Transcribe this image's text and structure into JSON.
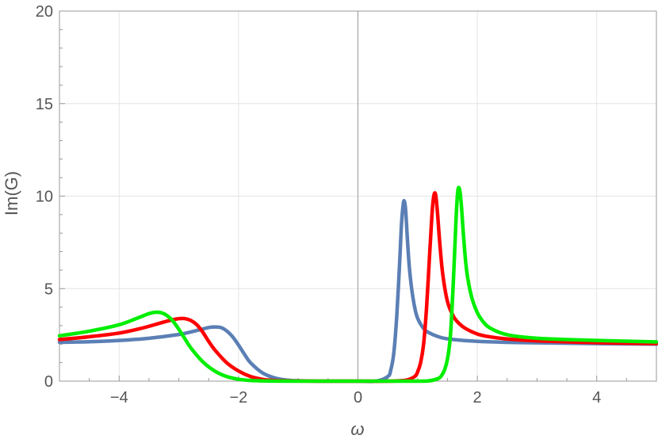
{
  "chart_data": {
    "type": "line",
    "title": "",
    "xlabel": "ω",
    "ylabel": "Im(G)",
    "xlim": [
      -5,
      5
    ],
    "ylim": [
      0,
      20
    ],
    "xticks": [
      -4,
      -2,
      0,
      2,
      4
    ],
    "xtick_labels": [
      "−4",
      "−2",
      "0",
      "2",
      "4"
    ],
    "yticks": [
      0,
      5,
      10,
      15,
      20
    ],
    "ytick_labels": [
      "0",
      "5",
      "10",
      "15",
      "20"
    ],
    "grid": true,
    "legend": "none",
    "series": [
      {
        "color": "#5b7fb5",
        "x": [
          -5,
          -4.5,
          -4,
          -3.5,
          -3,
          -2.8,
          -2.6,
          -2.5,
          -2.4,
          -2.3,
          -2.2,
          -2.1,
          -2,
          -1.9,
          -1.8,
          -1.6,
          -1.4,
          -1.2,
          -1,
          -0.5,
          0,
          0.3,
          0.5,
          0.55,
          0.6,
          0.65,
          0.7,
          0.73,
          0.76,
          0.78,
          0.8,
          0.83,
          0.86,
          0.9,
          0.95,
          1,
          1.1,
          1.2,
          1.4,
          1.6,
          2,
          2.5,
          3,
          4,
          5
        ],
        "y": [
          2.1,
          2.13,
          2.2,
          2.32,
          2.52,
          2.66,
          2.82,
          2.9,
          2.93,
          2.9,
          2.72,
          2.4,
          1.95,
          1.45,
          1.0,
          0.45,
          0.18,
          0.06,
          0.02,
          0.0,
          0.0,
          0.0,
          0.25,
          0.6,
          1.5,
          3.5,
          6.5,
          8.5,
          9.6,
          9.7,
          9.2,
          7.6,
          6.2,
          5.0,
          4.0,
          3.4,
          2.85,
          2.6,
          2.35,
          2.25,
          2.15,
          2.1,
          2.07,
          2.03,
          2.0
        ]
      },
      {
        "color": "#ff0000",
        "x": [
          -5,
          -4.5,
          -4,
          -3.6,
          -3.3,
          -3.1,
          -3.0,
          -2.9,
          -2.8,
          -2.7,
          -2.6,
          -2.5,
          -2.4,
          -2.2,
          -2,
          -1.8,
          -1.6,
          -1.4,
          -1,
          -0.5,
          0,
          0.5,
          0.8,
          0.95,
          1.0,
          1.05,
          1.1,
          1.15,
          1.2,
          1.24,
          1.27,
          1.3,
          1.33,
          1.37,
          1.42,
          1.5,
          1.6,
          1.7,
          1.8,
          2,
          2.2,
          2.5,
          3,
          4,
          5
        ],
        "y": [
          2.25,
          2.4,
          2.6,
          2.88,
          3.15,
          3.32,
          3.38,
          3.38,
          3.28,
          3.05,
          2.65,
          2.15,
          1.7,
          1.0,
          0.55,
          0.25,
          0.1,
          0.04,
          0.01,
          0.0,
          0.0,
          0.0,
          0.05,
          0.25,
          0.5,
          1.0,
          2.0,
          4.0,
          6.8,
          9.0,
          10.0,
          10.1,
          9.2,
          7.5,
          5.8,
          4.3,
          3.5,
          3.1,
          2.85,
          2.55,
          2.4,
          2.28,
          2.18,
          2.08,
          2.03
        ]
      },
      {
        "color": "#00ee00",
        "x": [
          -5,
          -4.5,
          -4,
          -3.7,
          -3.5,
          -3.4,
          -3.3,
          -3.2,
          -3.1,
          -3.0,
          -2.9,
          -2.8,
          -2.6,
          -2.4,
          -2.2,
          -2,
          -1.8,
          -1.5,
          -1,
          0,
          0.5,
          1,
          1.2,
          1.35,
          1.4,
          1.45,
          1.5,
          1.55,
          1.6,
          1.64,
          1.67,
          1.7,
          1.73,
          1.77,
          1.82,
          1.9,
          2.0,
          2.1,
          2.2,
          2.4,
          2.6,
          3,
          3.5,
          4,
          5
        ],
        "y": [
          2.45,
          2.7,
          3.05,
          3.4,
          3.65,
          3.72,
          3.7,
          3.55,
          3.25,
          2.8,
          2.3,
          1.8,
          1.05,
          0.55,
          0.25,
          0.1,
          0.04,
          0.01,
          0.0,
          0.0,
          0.0,
          0.0,
          0.02,
          0.15,
          0.3,
          0.6,
          1.2,
          2.5,
          5.5,
          8.5,
          10.2,
          10.4,
          9.6,
          7.8,
          6.0,
          4.6,
          3.7,
          3.2,
          2.9,
          2.6,
          2.45,
          2.32,
          2.25,
          2.2,
          2.12
        ]
      }
    ]
  }
}
